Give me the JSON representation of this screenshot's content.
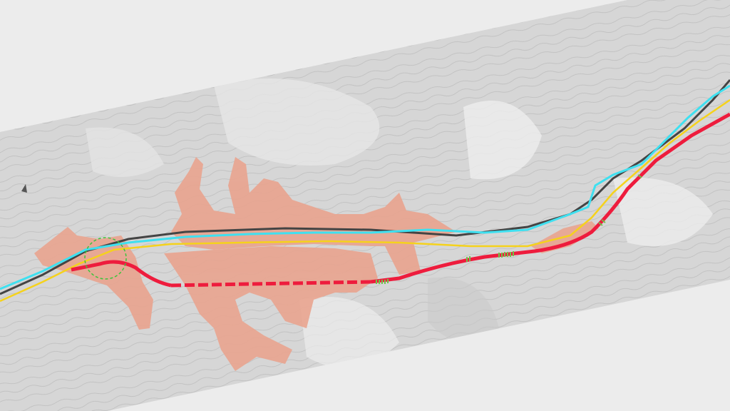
{
  "map": {
    "type": "topographic route alignment map",
    "colors": {
      "background": "#ececec",
      "map_sheet": "#d9d9d9",
      "urban_area": "#e9a48f",
      "proposed_route": "#ee1c3d",
      "tunnel_section": "#ee1c3d",
      "bridge_markers": "#6fc24a",
      "river": "#3fe0f0",
      "existing_road": "#f5d21c",
      "railway": "#444444",
      "junction_circle": "#3cc43c"
    },
    "icons": [
      "north-arrow-icon"
    ]
  }
}
